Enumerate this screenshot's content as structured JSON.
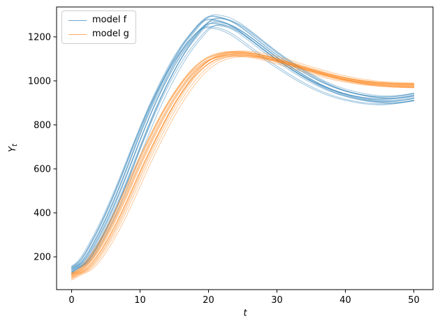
{
  "chart_data": {
    "type": "line",
    "title": "",
    "xlabel": "t",
    "ylabel": "Y_t",
    "ylabel_base": "Y",
    "ylabel_sub": "t",
    "grid": false,
    "legend_position": "upper left",
    "xlim": [
      -2.2,
      52.8
    ],
    "ylim": [
      51,
      1336
    ],
    "xticks": [
      0,
      10,
      20,
      30,
      40,
      50
    ],
    "yticks": [
      200,
      400,
      600,
      800,
      1000,
      1200
    ],
    "axis_color": "#000000",
    "background_color": "#ffffff",
    "line_alpha": 0.4,
    "line_width": 1.1,
    "t": [
      0,
      2,
      4,
      6,
      8,
      10,
      12,
      14,
      16,
      18,
      20,
      22,
      24,
      26,
      28,
      30,
      32,
      34,
      36,
      38,
      40,
      42,
      44,
      46,
      48,
      50
    ],
    "series": [
      {
        "name": "model f",
        "color": "#1f77b4",
        "mean": [
          140,
          185,
          290,
          420,
          570,
          730,
          880,
          1010,
          1120,
          1205,
          1267,
          1267,
          1243,
          1200,
          1152,
          1105,
          1063,
          1024,
          990,
          962,
          941,
          926,
          916,
          912,
          916,
          926
        ],
        "peak": {
          "t": 21,
          "value": 1270
        },
        "end_value": 926,
        "ensemble": [
          [
            -0.8,
            0.985
          ],
          [
            -0.5,
            1.01
          ],
          [
            -0.3,
            0.995
          ],
          [
            0.0,
            1.0
          ],
          [
            0.2,
            1.018
          ],
          [
            0.4,
            0.99
          ],
          [
            -0.2,
            1.025
          ],
          [
            0.6,
            1.005
          ],
          [
            0.8,
            0.978
          ],
          [
            -0.6,
            1.012
          ],
          [
            0.1,
            0.992
          ],
          [
            0.3,
            1.02
          ],
          [
            -0.4,
            0.982
          ],
          [
            0.7,
            1.008
          ],
          [
            1.0,
            0.973
          ]
        ]
      },
      {
        "name": "model g",
        "color": "#ff7f0e",
        "mean": [
          115,
          150,
          230,
          340,
          470,
          610,
          740,
          860,
          960,
          1040,
          1092,
          1117,
          1124,
          1121,
          1110,
          1094,
          1076,
          1057,
          1039,
          1022,
          1008,
          997,
          989,
          984,
          981,
          980
        ],
        "peak": {
          "t": 24,
          "value": 1124
        },
        "end_value": 980,
        "ensemble": [
          [
            -0.9,
            0.992
          ],
          [
            -0.4,
            1.006
          ],
          [
            0.0,
            1.0
          ],
          [
            0.3,
            0.995
          ],
          [
            0.5,
            1.01
          ],
          [
            -0.2,
            0.988
          ],
          [
            0.7,
            1.003
          ],
          [
            -0.6,
            1.012
          ],
          [
            0.1,
            0.997
          ],
          [
            0.4,
            1.008
          ],
          [
            -0.3,
            0.993
          ],
          [
            0.8,
            0.99
          ],
          [
            0.2,
            1.005
          ],
          [
            -0.7,
            1.001
          ],
          [
            -1.2,
            0.986
          ]
        ]
      }
    ]
  },
  "legend": {
    "items": [
      {
        "label": "model f",
        "color": "#1f77b4"
      },
      {
        "label": "model g",
        "color": "#ff7f0e"
      }
    ],
    "swatch_alpha": 0.65
  }
}
